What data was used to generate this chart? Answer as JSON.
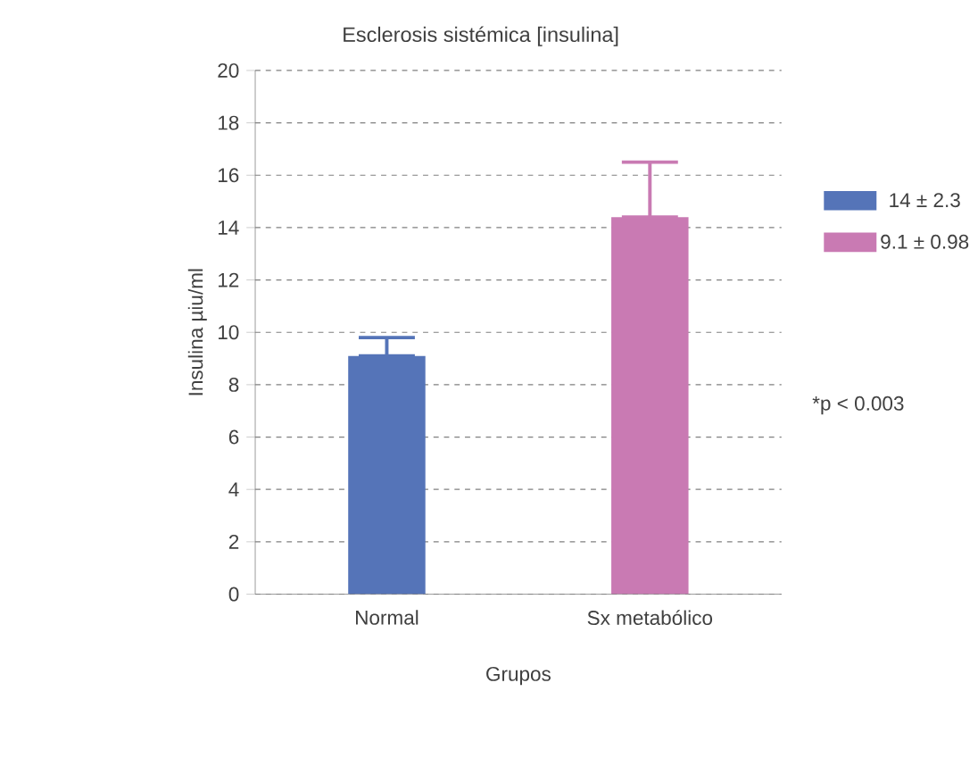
{
  "chart_data": {
    "type": "bar",
    "title": "Esclerosis sistémica [insulina]",
    "xlabel": "Grupos",
    "ylabel": "Insulina µiu/ml",
    "categories": [
      "Normal",
      "Sx metabólico"
    ],
    "series": [
      {
        "name": "14 ± 2.3",
        "color": "#5574b8",
        "values": [
          9.1,
          null
        ],
        "errors": [
          [
            9.1,
            9.8
          ],
          null
        ]
      },
      {
        "name": "9.1 ± 0.98",
        "color": "#c97ab3",
        "values": [
          null,
          14.4
        ],
        "errors": [
          null,
          [
            14.4,
            16.5
          ]
        ]
      }
    ],
    "ylim": [
      0,
      20
    ],
    "yticks": [
      0,
      2,
      4,
      6,
      8,
      10,
      12,
      14,
      16,
      18,
      20
    ],
    "grid": "y",
    "legend": "right",
    "annotations": [
      "*p < 0.003"
    ]
  }
}
